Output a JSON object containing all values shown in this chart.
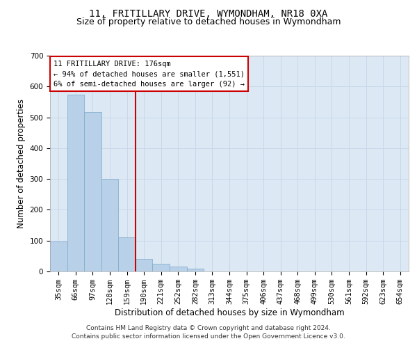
{
  "title": "11, FRITILLARY DRIVE, WYMONDHAM, NR18 0XA",
  "subtitle": "Size of property relative to detached houses in Wymondham",
  "xlabel": "Distribution of detached houses by size in Wymondham",
  "ylabel": "Number of detached properties",
  "footer_line1": "Contains HM Land Registry data © Crown copyright and database right 2024.",
  "footer_line2": "Contains public sector information licensed under the Open Government Licence v3.0.",
  "annotation_line1": "11 FRITILLARY DRIVE: 176sqm",
  "annotation_line2": "← 94% of detached houses are smaller (1,551)",
  "annotation_line3": "6% of semi-detached houses are larger (92) →",
  "bar_labels": [
    "35sqm",
    "66sqm",
    "97sqm",
    "128sqm",
    "159sqm",
    "190sqm",
    "221sqm",
    "252sqm",
    "282sqm",
    "313sqm",
    "344sqm",
    "375sqm",
    "406sqm",
    "437sqm",
    "468sqm",
    "499sqm",
    "530sqm",
    "561sqm",
    "592sqm",
    "623sqm",
    "654sqm"
  ],
  "bar_values": [
    96,
    573,
    517,
    300,
    110,
    40,
    25,
    15,
    8,
    1,
    0,
    1,
    0,
    0,
    0,
    0,
    0,
    0,
    0,
    0,
    0
  ],
  "bar_color": "#b8d0e8",
  "bar_edge_color": "#7aaac8",
  "reference_line_color": "#cc0000",
  "ylim": [
    0,
    700
  ],
  "yticks": [
    0,
    100,
    200,
    300,
    400,
    500,
    600,
    700
  ],
  "grid_color": "#c8d8ea",
  "plot_background": "#dce8f4",
  "annotation_box_color": "#ffffff",
  "annotation_box_edge": "#cc0000",
  "title_fontsize": 10,
  "subtitle_fontsize": 9,
  "axis_label_fontsize": 8.5,
  "tick_fontsize": 7.5,
  "annotation_fontsize": 7.5,
  "footer_fontsize": 6.5
}
